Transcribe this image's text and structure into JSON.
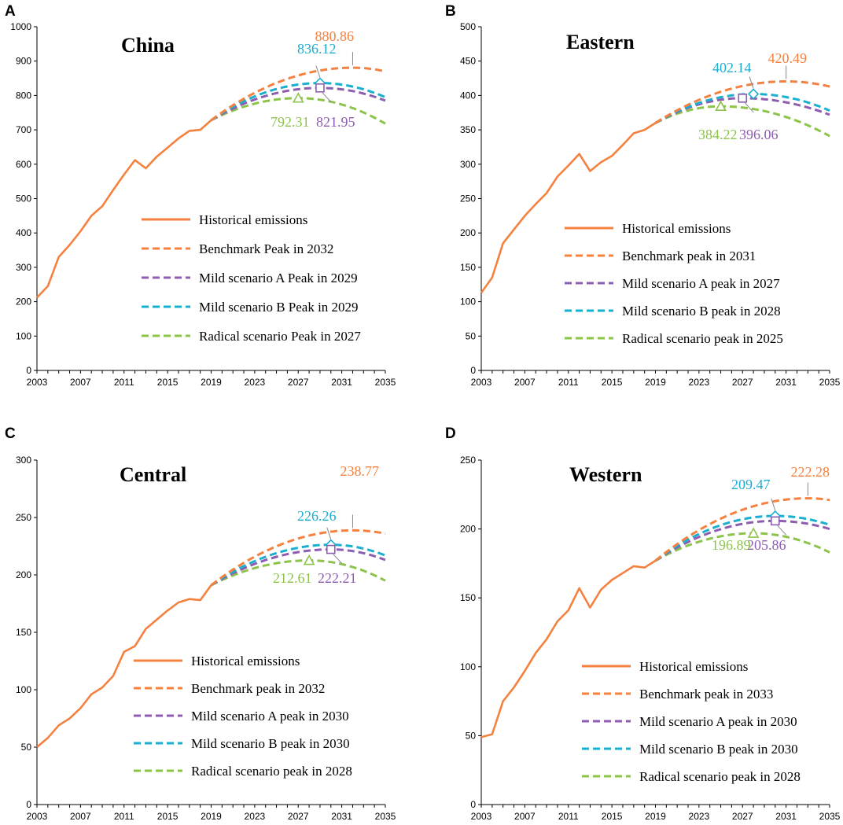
{
  "colors": {
    "historical": "#F4813F",
    "benchmark": "#F4813F",
    "mild_a": "#8E5DB0",
    "mild_b": "#1BAFCF",
    "radical": "#8CC34A",
    "axis": "#000000",
    "leader": "#888888"
  },
  "chart_data": [
    {
      "type": "line",
      "letter": "A",
      "title": "China",
      "ylim": [
        0,
        1000
      ],
      "yticks": [
        "0",
        "100",
        "200",
        "300",
        "400",
        "500",
        "600",
        "700",
        "800",
        "900",
        "1000"
      ],
      "xlim": [
        2003,
        2035
      ],
      "xticks": [
        "2003",
        "2007",
        "2011",
        "2015",
        "2019",
        "2023",
        "2027",
        "2031",
        "2035"
      ],
      "legend": [
        "Historical emissions",
        "Benchmark Peak in 2032",
        "Mild scenario A Peak in 2029",
        "Mild scenario B Peak in 2029",
        "Radical scenario Peak in 2027"
      ],
      "legend_position": "lower-right",
      "historical": {
        "x": [
          2003,
          2004,
          2005,
          2006,
          2007,
          2008,
          2009,
          2010,
          2011,
          2012,
          2013,
          2014,
          2015,
          2016,
          2017,
          2018,
          2019
        ],
        "y": [
          212,
          245,
          330,
          365,
          405,
          450,
          478,
          525,
          570,
          612,
          588,
          622,
          648,
          675,
          697,
          700,
          728
        ]
      },
      "series": [
        {
          "name": "Benchmark",
          "key": "benchmark",
          "peak_year": 2032,
          "peak": 880.86,
          "end": 870,
          "label": "880.86"
        },
        {
          "name": "Mild scenario B",
          "key": "mild_b",
          "peak_year": 2029,
          "peak": 836.12,
          "end": 795,
          "label": "836.12"
        },
        {
          "name": "Mild scenario A",
          "key": "mild_a",
          "peak_year": 2029,
          "peak": 821.95,
          "end": 785,
          "label": "821.95"
        },
        {
          "name": "Radical scenario",
          "key": "radical",
          "peak_year": 2027,
          "peak": 792.31,
          "end": 718,
          "label": "792.31"
        }
      ]
    },
    {
      "type": "line",
      "letter": "B",
      "title": "Eastern",
      "ylim": [
        0,
        500
      ],
      "yticks": [
        "0",
        "50",
        "100",
        "150",
        "200",
        "250",
        "300",
        "350",
        "400",
        "450",
        "500"
      ],
      "xlim": [
        2003,
        2035
      ],
      "xticks": [
        "2003",
        "2007",
        "2011",
        "2015",
        "2019",
        "2023",
        "2027",
        "2031",
        "2035"
      ],
      "legend": [
        "Historical emissions",
        "Benchmark peak in 2031",
        "Mild scenario A peak in 2027",
        "Mild scenario B peak in 2028",
        "Radical scenario peak in 2025"
      ],
      "legend_position": "lower-right",
      "historical": {
        "x": [
          2003,
          2004,
          2005,
          2006,
          2007,
          2008,
          2009,
          2010,
          2011,
          2012,
          2013,
          2014,
          2015,
          2016,
          2017,
          2018,
          2019
        ],
        "y": [
          113,
          135,
          185,
          205,
          225,
          242,
          258,
          282,
          298,
          315,
          290,
          303,
          312,
          328,
          345,
          350,
          360
        ]
      },
      "series": [
        {
          "name": "Benchmark",
          "key": "benchmark",
          "peak_year": 2031,
          "peak": 420.49,
          "end": 413,
          "label": "420.49"
        },
        {
          "name": "Mild scenario B",
          "key": "mild_b",
          "peak_year": 2028,
          "peak": 402.14,
          "end": 378,
          "label": "402.14"
        },
        {
          "name": "Mild scenario A",
          "key": "mild_a",
          "peak_year": 2027,
          "peak": 396.06,
          "end": 372,
          "label": "396.06"
        },
        {
          "name": "Radical scenario",
          "key": "radical",
          "peak_year": 2025,
          "peak": 384.22,
          "end": 341,
          "label": "384.22"
        }
      ]
    },
    {
      "type": "line",
      "letter": "C",
      "title": "Central",
      "ylim": [
        0,
        300
      ],
      "yticks": [
        "0",
        "50",
        "100",
        "150",
        "200",
        "250",
        "300"
      ],
      "xlim": [
        2003,
        2035
      ],
      "xticks": [
        "2003",
        "2007",
        "2011",
        "2015",
        "2019",
        "2023",
        "2027",
        "2031",
        "2035"
      ],
      "legend": [
        "Historical emissions",
        "Benchmark peak in 2032",
        "Mild scenario A peak in 2030",
        "Mild scenario B peak in 2030",
        "Radical scenario peak in 2028"
      ],
      "legend_position": "lower-right",
      "historical": {
        "x": [
          2003,
          2004,
          2005,
          2006,
          2007,
          2008,
          2009,
          2010,
          2011,
          2012,
          2013,
          2014,
          2015,
          2016,
          2017,
          2018,
          2019
        ],
        "y": [
          50,
          58,
          69,
          75,
          84,
          96,
          102,
          112,
          133,
          138,
          153,
          161,
          169,
          176,
          179,
          178,
          191
        ]
      },
      "series": [
        {
          "name": "Benchmark",
          "key": "benchmark",
          "peak_year": 2032,
          "peak": 238.77,
          "end": 236,
          "label": "238.77"
        },
        {
          "name": "Mild scenario B",
          "key": "mild_b",
          "peak_year": 2030,
          "peak": 226.26,
          "end": 217,
          "label": "226.26"
        },
        {
          "name": "Mild scenario A",
          "key": "mild_a",
          "peak_year": 2030,
          "peak": 222.21,
          "end": 213,
          "label": "222.21"
        },
        {
          "name": "Radical scenario",
          "key": "radical",
          "peak_year": 2028,
          "peak": 212.61,
          "end": 195,
          "label": "212.61"
        }
      ]
    },
    {
      "type": "line",
      "letter": "D",
      "title": "Western",
      "ylim": [
        0,
        250
      ],
      "yticks": [
        "0",
        "50",
        "100",
        "150",
        "200",
        "250"
      ],
      "xlim": [
        2003,
        2035
      ],
      "xticks": [
        "2003",
        "2007",
        "2011",
        "2015",
        "2019",
        "2023",
        "2027",
        "2031",
        "2035"
      ],
      "legend": [
        "Historical emissions",
        "Benchmark peak in 2033",
        "Mild scenario A peak in 2030",
        "Mild scenario B peak in 2030",
        "Radical scenario peak in 2028"
      ],
      "legend_position": "lower-right",
      "historical": {
        "x": [
          2003,
          2004,
          2005,
          2006,
          2007,
          2008,
          2009,
          2010,
          2011,
          2012,
          2013,
          2014,
          2015,
          2016,
          2017,
          2018,
          2019
        ],
        "y": [
          49,
          51,
          75,
          85,
          97,
          110,
          120,
          133,
          141,
          157,
          143,
          156,
          163,
          168,
          173,
          172,
          177
        ]
      },
      "series": [
        {
          "name": "Benchmark",
          "key": "benchmark",
          "peak_year": 2033,
          "peak": 222.28,
          "end": 221,
          "label": "222.28"
        },
        {
          "name": "Mild scenario B",
          "key": "mild_b",
          "peak_year": 2030,
          "peak": 209.47,
          "end": 203,
          "label": "209.47"
        },
        {
          "name": "Mild scenario A",
          "key": "mild_a",
          "peak_year": 2030,
          "peak": 205.86,
          "end": 200,
          "label": "205.86"
        },
        {
          "name": "Radical scenario",
          "key": "radical",
          "peak_year": 2028,
          "peak": 196.89,
          "end": 183,
          "label": "196.89"
        }
      ]
    }
  ]
}
